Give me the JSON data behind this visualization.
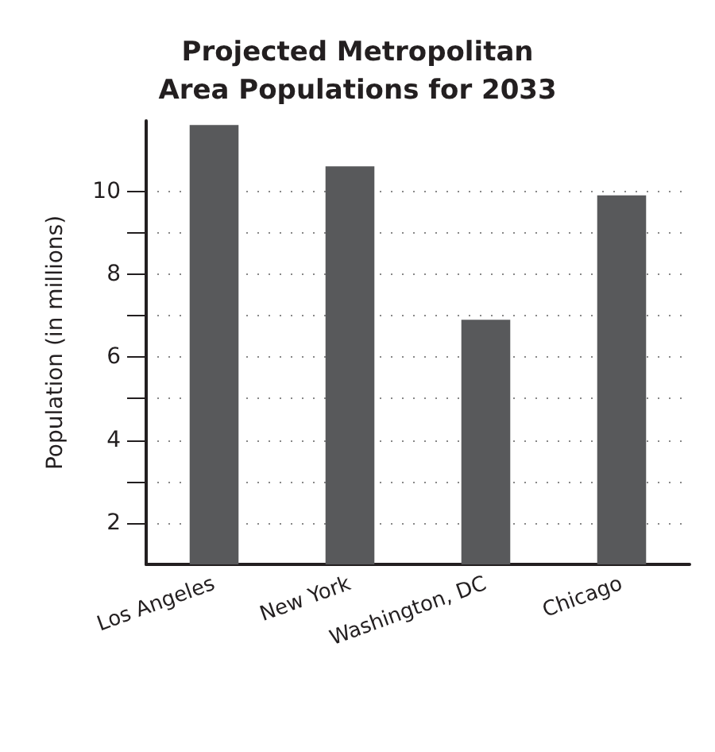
{
  "chart_data": {
    "type": "bar",
    "title": "Projected Metropolitan\nArea Populations for 2033",
    "ylabel": "Population (in millions)",
    "categories": [
      "Los Angeles",
      "New York",
      "Washington, DC",
      "Chicago"
    ],
    "values": [
      11.6,
      10.6,
      6.9,
      9.9
    ],
    "color": "#58595b",
    "ylim": [
      1,
      11.7
    ],
    "yticks": [
      2,
      {
        "value": 3,
        "label": null
      },
      4,
      {
        "value": 5,
        "label": null
      },
      6,
      {
        "value": 7,
        "label": null
      },
      8,
      {
        "value": 9,
        "label": null
      },
      10
    ],
    "grid": "y"
  }
}
